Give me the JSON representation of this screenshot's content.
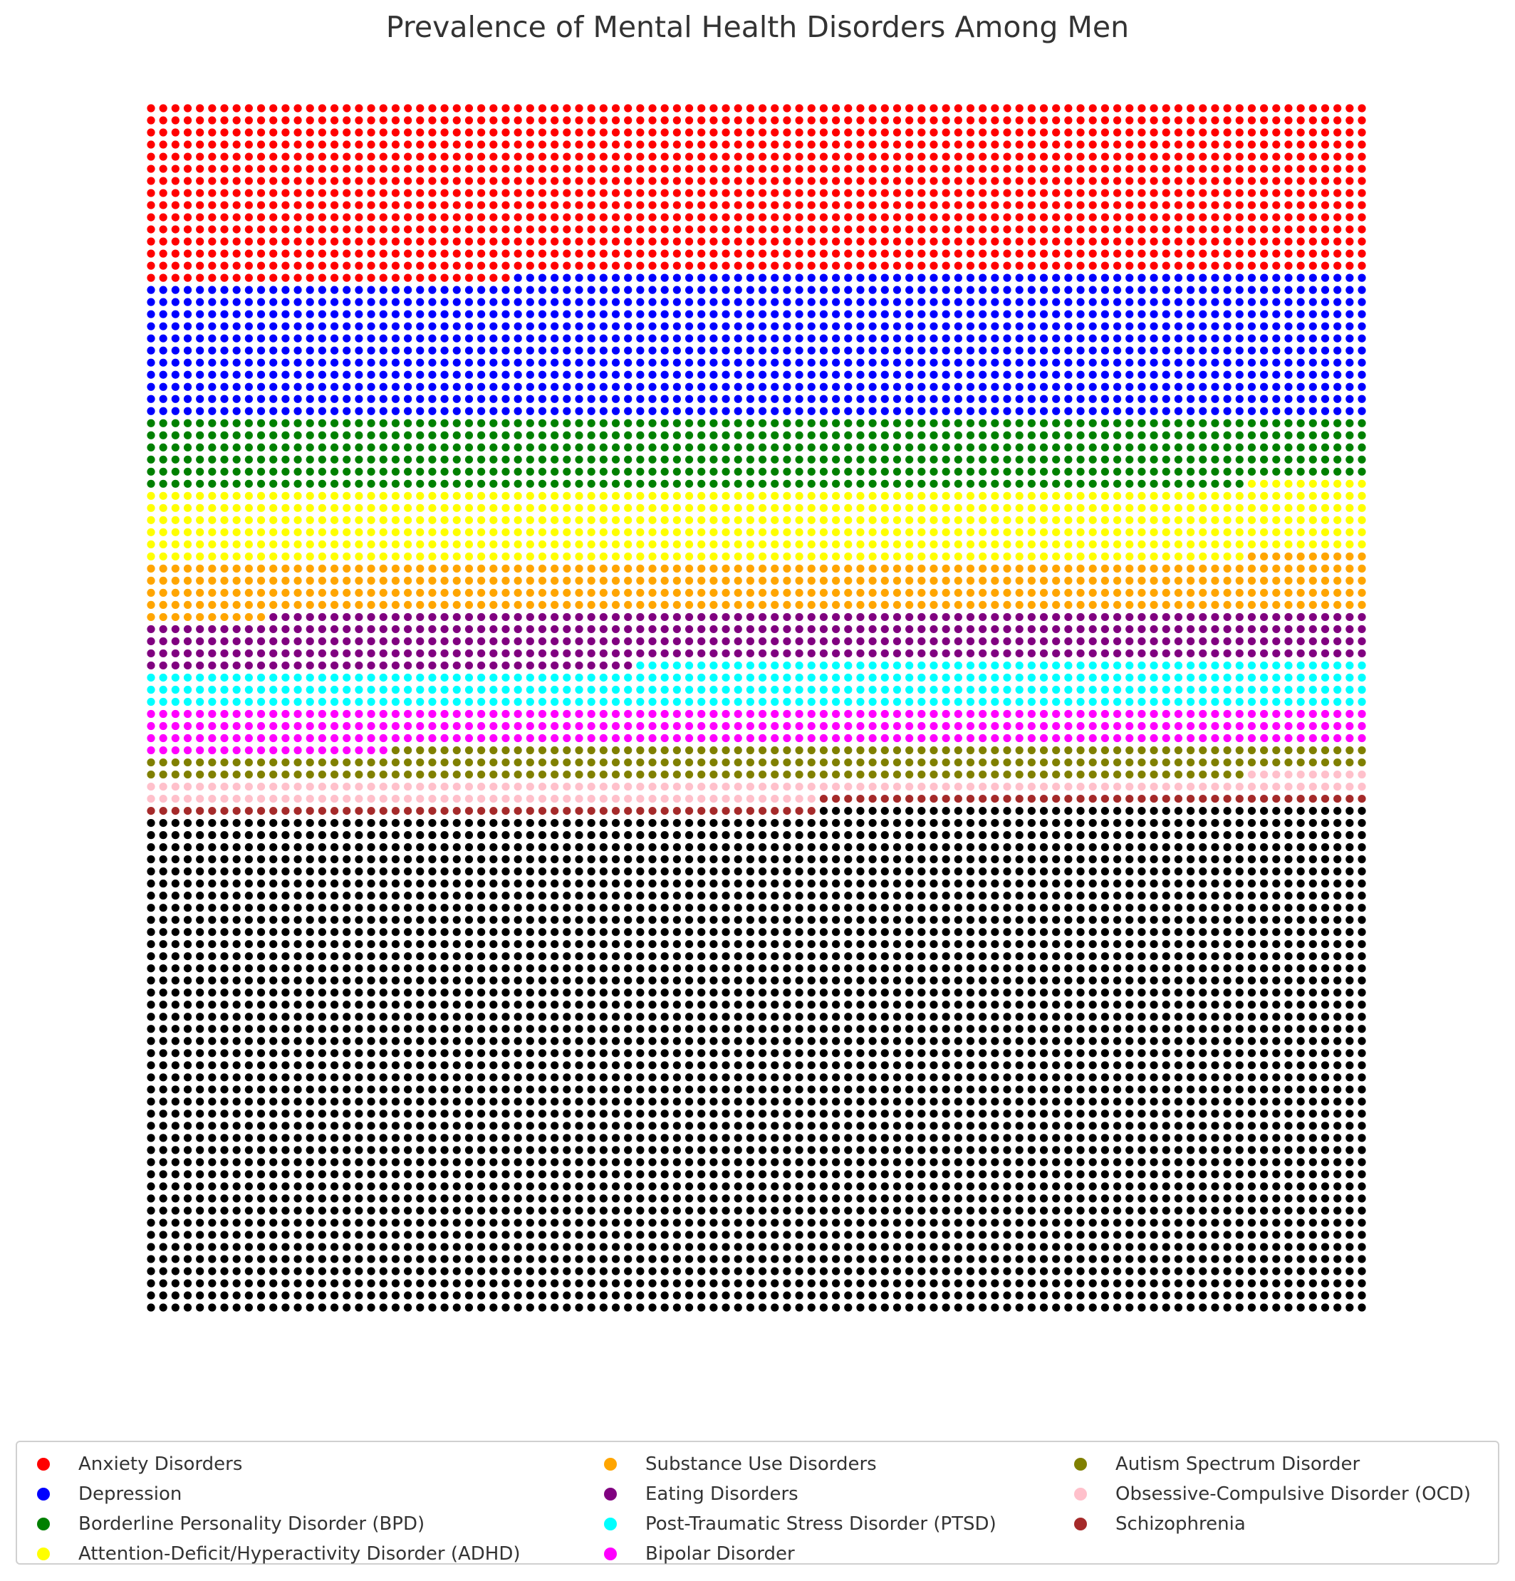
{
  "chart_data": {
    "type": "waffle",
    "title": "Prevalence of Mental Health Disorders Among Men",
    "grid": {
      "columns": 100,
      "rows": 100,
      "total": 10000
    },
    "fill_order": "row-wise from top, left to right",
    "legend_placement": "bottom",
    "categories": [
      {
        "name": "Anxiety Disorders",
        "count": 1430,
        "color": "#ff0000"
      },
      {
        "name": "Depression",
        "count": 1170,
        "color": "#0000ff"
      },
      {
        "name": "Borderline Personality Disorder (BPD)",
        "count": 590,
        "color": "#008000"
      },
      {
        "name": "Attention-Deficit/Hyperactivity Disorder (ADHD)",
        "count": 600,
        "color": "#ffff00"
      },
      {
        "name": "Substance Use Disorders",
        "count": 420,
        "color": "#ffa500"
      },
      {
        "name": "Eating Disorders",
        "count": 430,
        "color": "#800080"
      },
      {
        "name": "Post-Traumatic Stress Disorder (PTSD)",
        "count": 360,
        "color": "#00ffff"
      },
      {
        "name": "Bipolar Disorder",
        "count": 320,
        "color": "#ff00ff"
      },
      {
        "name": "Autism Spectrum Disorder",
        "count": 270,
        "color": "#808000"
      },
      {
        "name": "Obsessive-Compulsive Disorder (OCD)",
        "count": 165,
        "color": "#ffc0cb"
      },
      {
        "name": "Schizophrenia",
        "count": 100,
        "color": "#a52a2a"
      }
    ],
    "remainder": {
      "count": 4145,
      "color": "#000000"
    }
  }
}
